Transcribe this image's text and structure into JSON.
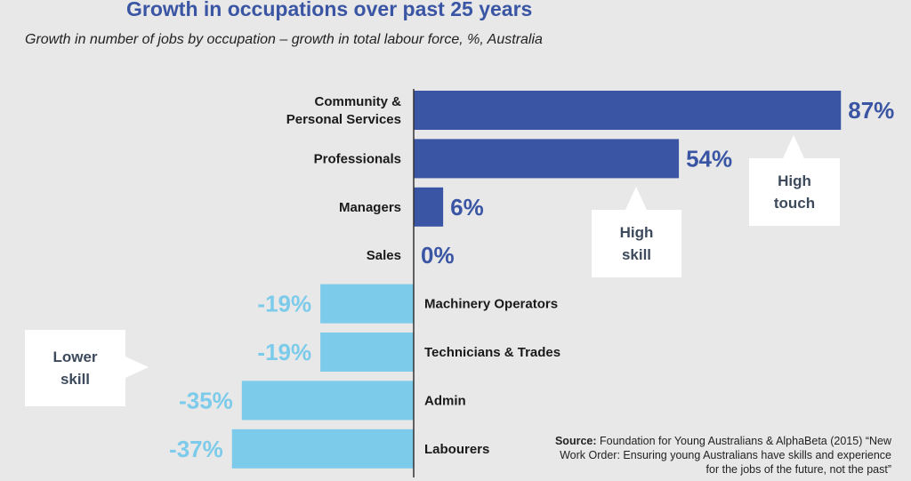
{
  "title": "Growth in occupations over past 25 years",
  "subtitle": "Growth in number of jobs by occupation – growth in total labour force, %, Australia",
  "colors": {
    "positive": "#3a55a4",
    "negative": "#7ccbea",
    "title": "#3a55a4",
    "axis": "#333333"
  },
  "callouts": {
    "high_skill": "High\nskill",
    "high_touch": "High\ntouch",
    "lower_skill": "Lower\nskill"
  },
  "source": {
    "label": "Source:",
    "text": "Foundation for Young Australians & AlphaBeta (2015) “New Work Order: Ensuring young Australians have skills and experience for the jobs of the future, not the past”"
  },
  "chart_data": {
    "type": "bar",
    "orientation": "horizontal",
    "title": "Growth in occupations over past 25 years",
    "subtitle": "Growth in number of jobs by occupation – growth in total labour force, %, Australia",
    "unit": "%",
    "categories": [
      "Community &\nPersonal Services",
      "Professionals",
      "Managers",
      "Sales",
      "Machinery Operators",
      "Technicians & Trades",
      "Admin",
      "Labourers"
    ],
    "values": [
      87,
      54,
      6,
      0,
      -19,
      -19,
      -35,
      -37
    ],
    "value_labels": [
      "87%",
      "54%",
      "6%",
      "0%",
      "-19%",
      "-19%",
      "-35%",
      "-37%"
    ],
    "grid": false,
    "legend": "none"
  }
}
